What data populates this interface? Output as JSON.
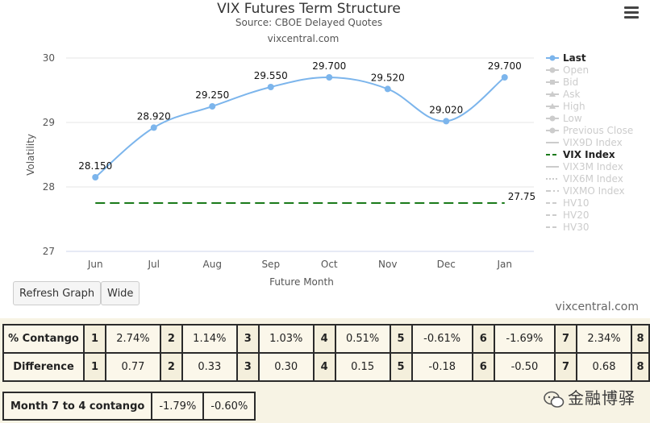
{
  "chart_data": {
    "type": "line",
    "title": "VIX Futures Term Structure",
    "subtitle": "Source: CBOE Delayed Quotes",
    "credit_top": "vixcentral.com",
    "xlabel": "Future Month",
    "ylabel": "Volatility",
    "categories": [
      "Jun",
      "Jul",
      "Aug",
      "Sep",
      "Oct",
      "Nov",
      "Dec",
      "Jan"
    ],
    "ylim": [
      27,
      30
    ],
    "yticks": [
      27,
      28,
      29,
      30
    ],
    "grid": true,
    "legend_position": "right",
    "series": [
      {
        "name": "Last",
        "values": [
          28.15,
          28.92,
          29.25,
          29.55,
          29.7,
          29.52,
          29.02,
          29.7
        ],
        "labels": [
          "28.150",
          "28.920",
          "29.250",
          "29.550",
          "29.700",
          "29.520",
          "29.020",
          "29.700"
        ],
        "color": "#7cb5ec"
      },
      {
        "name": "VIX Index",
        "values": [
          27.75,
          27.75,
          27.75,
          27.75,
          27.75,
          27.75,
          27.75,
          27.75
        ],
        "end_label": "27.75",
        "color": "#1a7a1a",
        "dashed": true
      }
    ],
    "legend": [
      {
        "name": "Last",
        "active": true,
        "symbol": "line-dot",
        "color": "#7cb5ec"
      },
      {
        "name": "Open",
        "active": false,
        "symbol": "line-dot"
      },
      {
        "name": "Bid",
        "active": false,
        "symbol": "line-square"
      },
      {
        "name": "Ask",
        "active": false,
        "symbol": "line-triangle"
      },
      {
        "name": "High",
        "active": false,
        "symbol": "line-triangle"
      },
      {
        "name": "Low",
        "active": false,
        "symbol": "line-dot"
      },
      {
        "name": "Previous Close",
        "active": false,
        "symbol": "line-dot"
      },
      {
        "name": "VIX9D Index",
        "active": false,
        "symbol": "line"
      },
      {
        "name": "VIX Index",
        "active": true,
        "symbol": "dash",
        "color": "#1a7a1a"
      },
      {
        "name": "VIX3M Index",
        "active": false,
        "symbol": "line"
      },
      {
        "name": "VIX6M Index",
        "active": false,
        "symbol": "dot"
      },
      {
        "name": "VIXMO Index",
        "active": false,
        "symbol": "dashdot"
      },
      {
        "name": "HV10",
        "active": false,
        "symbol": "dash"
      },
      {
        "name": "HV20",
        "active": false,
        "symbol": "dash"
      },
      {
        "name": "HV30",
        "active": false,
        "symbol": "dash"
      }
    ]
  },
  "controls": {
    "refresh_label": "Refresh Graph",
    "wide_label": "Wide"
  },
  "footer": {
    "credit": "vixcentral.com"
  },
  "contango_table": {
    "rows": [
      {
        "label": "% Contango",
        "cells": [
          [
            "1",
            "2.74%"
          ],
          [
            "2",
            "1.14%"
          ],
          [
            "3",
            "1.03%"
          ],
          [
            "4",
            "0.51%"
          ],
          [
            "5",
            "-0.61%"
          ],
          [
            "6",
            "-1.69%"
          ],
          [
            "7",
            "2.34%"
          ]
        ],
        "tail": "8"
      },
      {
        "label": "Difference",
        "cells": [
          [
            "1",
            "0.77"
          ],
          [
            "2",
            "0.33"
          ],
          [
            "3",
            "0.30"
          ],
          [
            "4",
            "0.15"
          ],
          [
            "5",
            "-0.18"
          ],
          [
            "6",
            "-0.50"
          ],
          [
            "7",
            "0.68"
          ]
        ],
        "tail": "8"
      }
    ]
  },
  "month74": {
    "label": "Month 7 to 4 contango",
    "v1": "-1.79%",
    "v2": "-0.60%"
  },
  "watermark": {
    "text": "金融博驿"
  }
}
